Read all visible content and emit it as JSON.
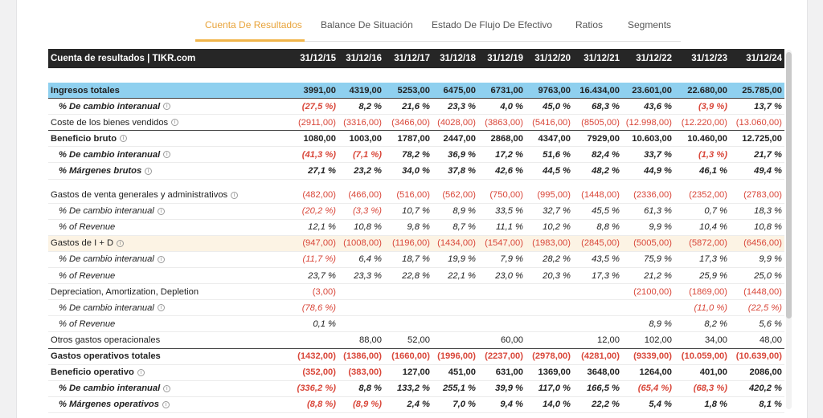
{
  "tabs": [
    "Cuenta De Resultados",
    "Balance De Situación",
    "Estado De Flujo De Efectivo",
    "Ratios",
    "Segments"
  ],
  "table": {
    "title": "Cuenta de resultados | TIKR.com",
    "years": [
      "31/12/15",
      "31/12/16",
      "31/12/17",
      "31/12/18",
      "31/12/19",
      "31/12/20",
      "31/12/21",
      "31/12/22",
      "31/12/23",
      "31/12/24"
    ],
    "rows": [
      {
        "label": "Ingresos totales",
        "style": "bold hl-blue thick",
        "info": false,
        "indent": false,
        "values": [
          "3991,00",
          "4319,00",
          "5253,00",
          "6475,00",
          "6731,00",
          "9763,00",
          "16.434,00",
          "23.601,00",
          "22.680,00",
          "25.785,00"
        ]
      },
      {
        "label": "% De cambio interanual",
        "style": "bold italic",
        "info": true,
        "indent": true,
        "values": [
          "(27,5 %)",
          "8,2 %",
          "21,6 %",
          "23,3 %",
          "4,0 %",
          "45,0 %",
          "68,3 %",
          "43,6 %",
          "(3,9 %)",
          "13,7 %"
        ]
      },
      {
        "label": "Coste de los bienes vendidos",
        "style": "thick",
        "info": true,
        "indent": false,
        "values": [
          "(2911,00)",
          "(3316,00)",
          "(3466,00)",
          "(4028,00)",
          "(3863,00)",
          "(5416,00)",
          "(8505,00)",
          "(12.998,00)",
          "(12.220,00)",
          "(13.060,00)"
        ]
      },
      {
        "label": "Beneficio bruto",
        "style": "bold",
        "info": true,
        "indent": false,
        "values": [
          "1080,00",
          "1003,00",
          "1787,00",
          "2447,00",
          "2868,00",
          "4347,00",
          "7929,00",
          "10.603,00",
          "10.460,00",
          "12.725,00"
        ]
      },
      {
        "label": "% De cambio interanual",
        "style": "bold italic",
        "info": true,
        "indent": true,
        "values": [
          "(41,3 %)",
          "(7,1 %)",
          "78,2 %",
          "36,9 %",
          "17,2 %",
          "51,6 %",
          "82,4 %",
          "33,7 %",
          "(1,3 %)",
          "21,7 %"
        ]
      },
      {
        "label": "% Márgenes brutos",
        "style": "bold italic",
        "info": true,
        "indent": true,
        "values": [
          "27,1 %",
          "23,2 %",
          "34,0 %",
          "37,8 %",
          "42,6 %",
          "44,5 %",
          "48,2 %",
          "44,9 %",
          "46,1 %",
          "49,4 %"
        ]
      },
      {
        "gap": true
      },
      {
        "label": "Gastos de venta generales y administrativos",
        "style": "",
        "info": true,
        "indent": false,
        "values": [
          "(482,00)",
          "(466,00)",
          "(516,00)",
          "(562,00)",
          "(750,00)",
          "(995,00)",
          "(1448,00)",
          "(2336,00)",
          "(2352,00)",
          "(2783,00)"
        ]
      },
      {
        "label": "% De cambio interanual",
        "style": "italic",
        "info": true,
        "indent": true,
        "values": [
          "(20,2 %)",
          "(3,3 %)",
          "10,7 %",
          "8,9 %",
          "33,5 %",
          "32,7 %",
          "45,5 %",
          "61,3 %",
          "0,7 %",
          "18,3 %"
        ]
      },
      {
        "label": "% of Revenue",
        "style": "italic",
        "info": false,
        "indent": true,
        "values": [
          "12,1 %",
          "10,8 %",
          "9,8 %",
          "8,7 %",
          "11,1 %",
          "10,2 %",
          "8,8 %",
          "9,9 %",
          "10,4 %",
          "10,8 %"
        ]
      },
      {
        "label": "Gastos de I + D",
        "style": "hl-cream",
        "info": true,
        "indent": false,
        "values": [
          "(947,00)",
          "(1008,00)",
          "(1196,00)",
          "(1434,00)",
          "(1547,00)",
          "(1983,00)",
          "(2845,00)",
          "(5005,00)",
          "(5872,00)",
          "(6456,00)"
        ]
      },
      {
        "label": "% De cambio interanual",
        "style": "italic",
        "info": true,
        "indent": true,
        "values": [
          "(11,7 %)",
          "6,4 %",
          "18,7 %",
          "19,9 %",
          "7,9 %",
          "28,2 %",
          "43,5 %",
          "75,9 %",
          "17,3 %",
          "9,9 %"
        ]
      },
      {
        "label": "% of Revenue",
        "style": "italic",
        "info": false,
        "indent": true,
        "values": [
          "23,7 %",
          "23,3 %",
          "22,8 %",
          "22,1 %",
          "23,0 %",
          "20,3 %",
          "17,3 %",
          "21,2 %",
          "25,9 %",
          "25,0 %"
        ]
      },
      {
        "label": "Depreciation, Amortization, Depletion",
        "style": "",
        "info": false,
        "indent": false,
        "values": [
          "(3,00)",
          "",
          "",
          "",
          "",
          "",
          "",
          "(2100,00)",
          "(1869,00)",
          "(1448,00)"
        ]
      },
      {
        "label": "% De cambio interanual",
        "style": "italic",
        "info": true,
        "indent": true,
        "values": [
          "(78,6 %)",
          "",
          "",
          "",
          "",
          "",
          "",
          "",
          "(11,0 %)",
          "(22,5 %)"
        ]
      },
      {
        "label": "% of Revenue",
        "style": "italic",
        "info": false,
        "indent": true,
        "values": [
          "0,1 %",
          "",
          "",
          "",
          "",
          "",
          "",
          "8,9 %",
          "8,2 %",
          "5,6 %"
        ]
      },
      {
        "label": "Otros gastos operacionales",
        "style": "thick",
        "info": false,
        "indent": false,
        "values": [
          "",
          "88,00",
          "52,00",
          "",
          "60,00",
          "",
          "12,00",
          "102,00",
          "34,00",
          "48,00"
        ]
      },
      {
        "label": "Gastos operativos totales",
        "style": "bold",
        "info": false,
        "indent": false,
        "values": [
          "(1432,00)",
          "(1386,00)",
          "(1660,00)",
          "(1996,00)",
          "(2237,00)",
          "(2978,00)",
          "(4281,00)",
          "(9339,00)",
          "(10.059,00)",
          "(10.639,00)"
        ]
      },
      {
        "label": "Beneficio operativo",
        "style": "bold",
        "info": true,
        "indent": false,
        "values": [
          "(352,00)",
          "(383,00)",
          "127,00",
          "451,00",
          "631,00",
          "1369,00",
          "3648,00",
          "1264,00",
          "401,00",
          "2086,00"
        ]
      },
      {
        "label": "% De cambio interanual",
        "style": "bold italic",
        "info": true,
        "indent": true,
        "values": [
          "(336,2 %)",
          "8,8 %",
          "133,2 %",
          "255,1 %",
          "39,9 %",
          "117,0 %",
          "166,5 %",
          "(65,4 %)",
          "(68,3 %)",
          "420,2 %"
        ]
      },
      {
        "label": "% Márgenes operativos",
        "style": "bold italic",
        "info": true,
        "indent": true,
        "values": [
          "(8,8 %)",
          "(8,9 %)",
          "2,4 %",
          "7,0 %",
          "9,4 %",
          "14,0 %",
          "22,2 %",
          "5,4 %",
          "1,8 %",
          "8,1 %"
        ]
      }
    ]
  },
  "colors": {
    "accent": "#f1b54a",
    "negative": "#d9473a",
    "header_bg": "#262626",
    "highlight_blue": "#8fd0ef",
    "highlight_cream": "#fcf3e4"
  }
}
